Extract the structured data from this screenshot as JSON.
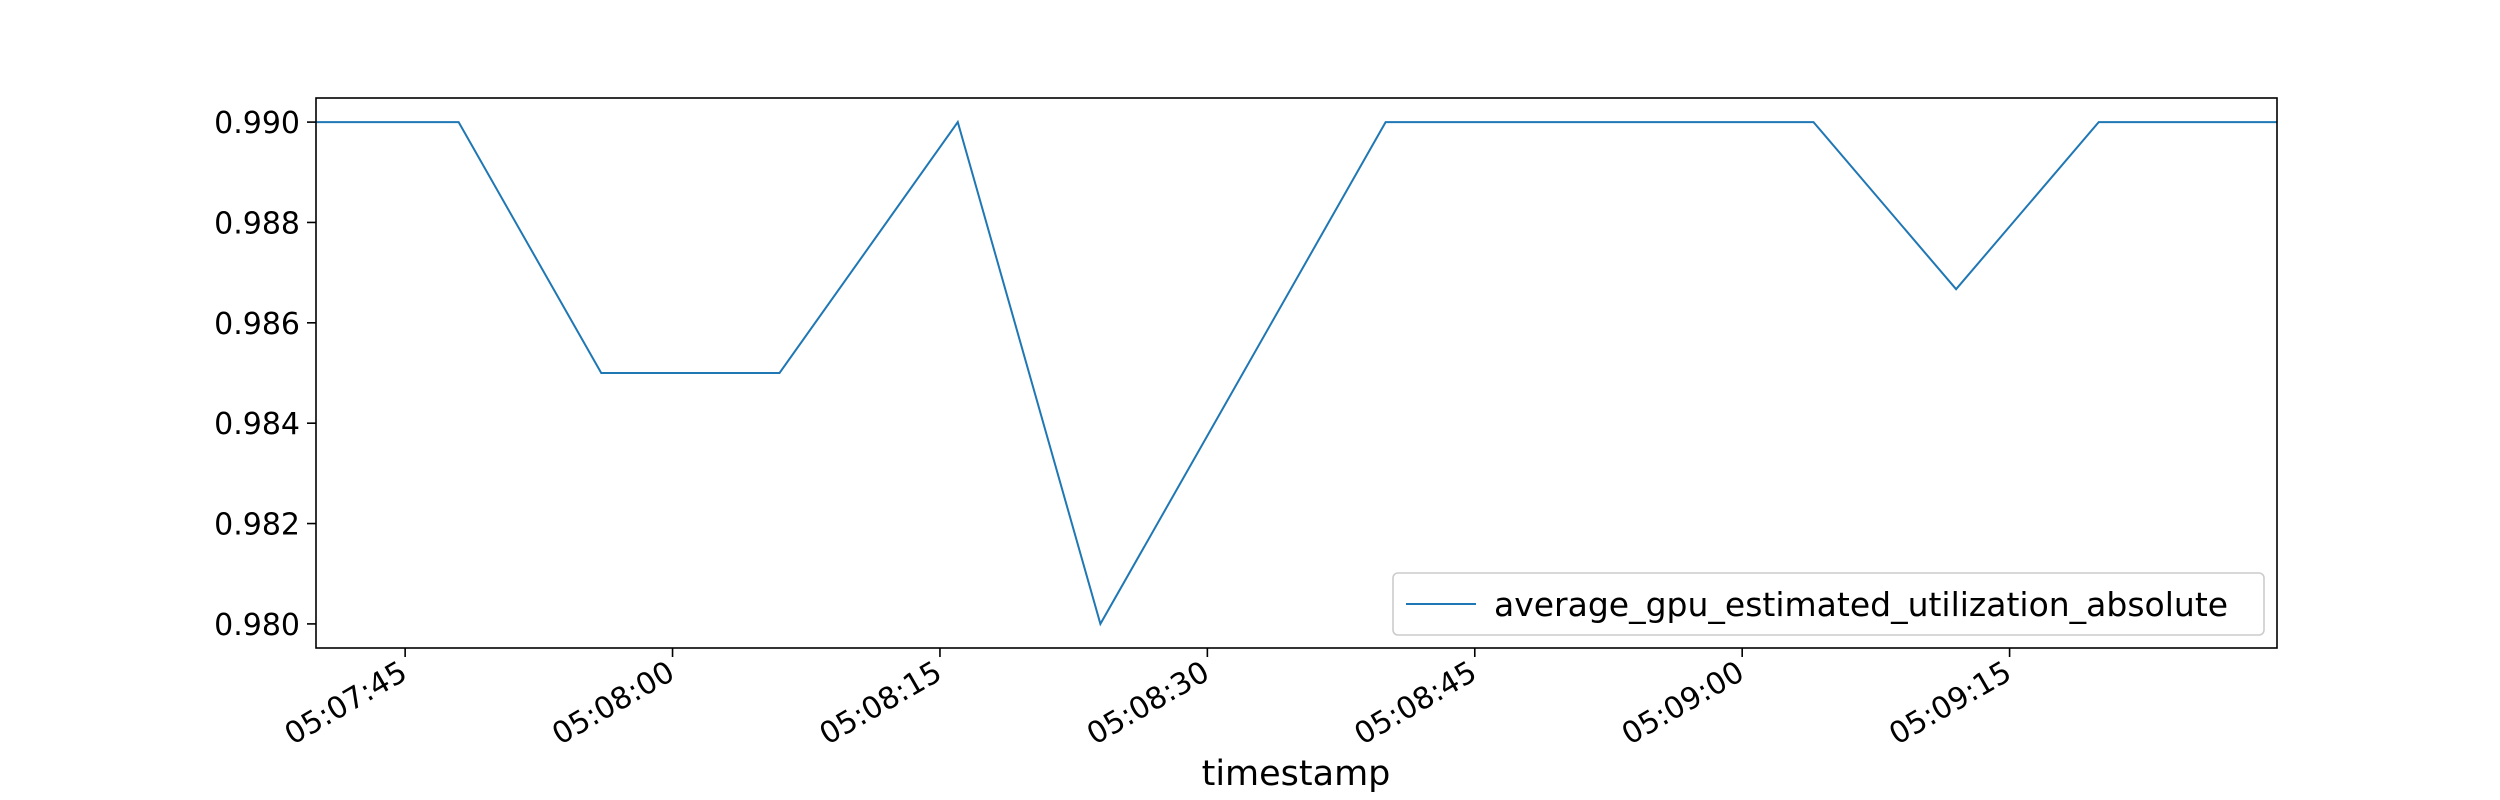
{
  "chart_data": {
    "type": "line",
    "xlabel": "timestamp",
    "ylabel": "",
    "x": [
      "05:07:40",
      "05:07:48",
      "05:07:56",
      "05:08:06",
      "05:08:16",
      "05:08:24",
      "05:08:40",
      "05:09:04",
      "05:09:12",
      "05:09:20",
      "05:09:30"
    ],
    "series": [
      {
        "name": "average_gpu_estimated_utilization_absolute",
        "color": "#1f77b4",
        "values": [
          0.99,
          0.99,
          0.985,
          0.985,
          0.99,
          0.98,
          0.99,
          0.99,
          0.98667,
          0.99,
          0.99
        ]
      }
    ],
    "xlim": [
      "05:07:40",
      "05:09:30"
    ],
    "ylim": [
      0.97952,
      0.99048
    ],
    "x_ticks": [
      "05:07:45",
      "05:08:00",
      "05:08:15",
      "05:08:30",
      "05:08:45",
      "05:09:00",
      "05:09:15"
    ],
    "y_ticks": [
      0.98,
      0.982,
      0.984,
      0.986,
      0.988,
      0.99
    ],
    "y_tick_labels": [
      "0.980",
      "0.982",
      "0.984",
      "0.986",
      "0.988",
      "0.990"
    ],
    "grid": false,
    "legend_position": "lower right"
  }
}
